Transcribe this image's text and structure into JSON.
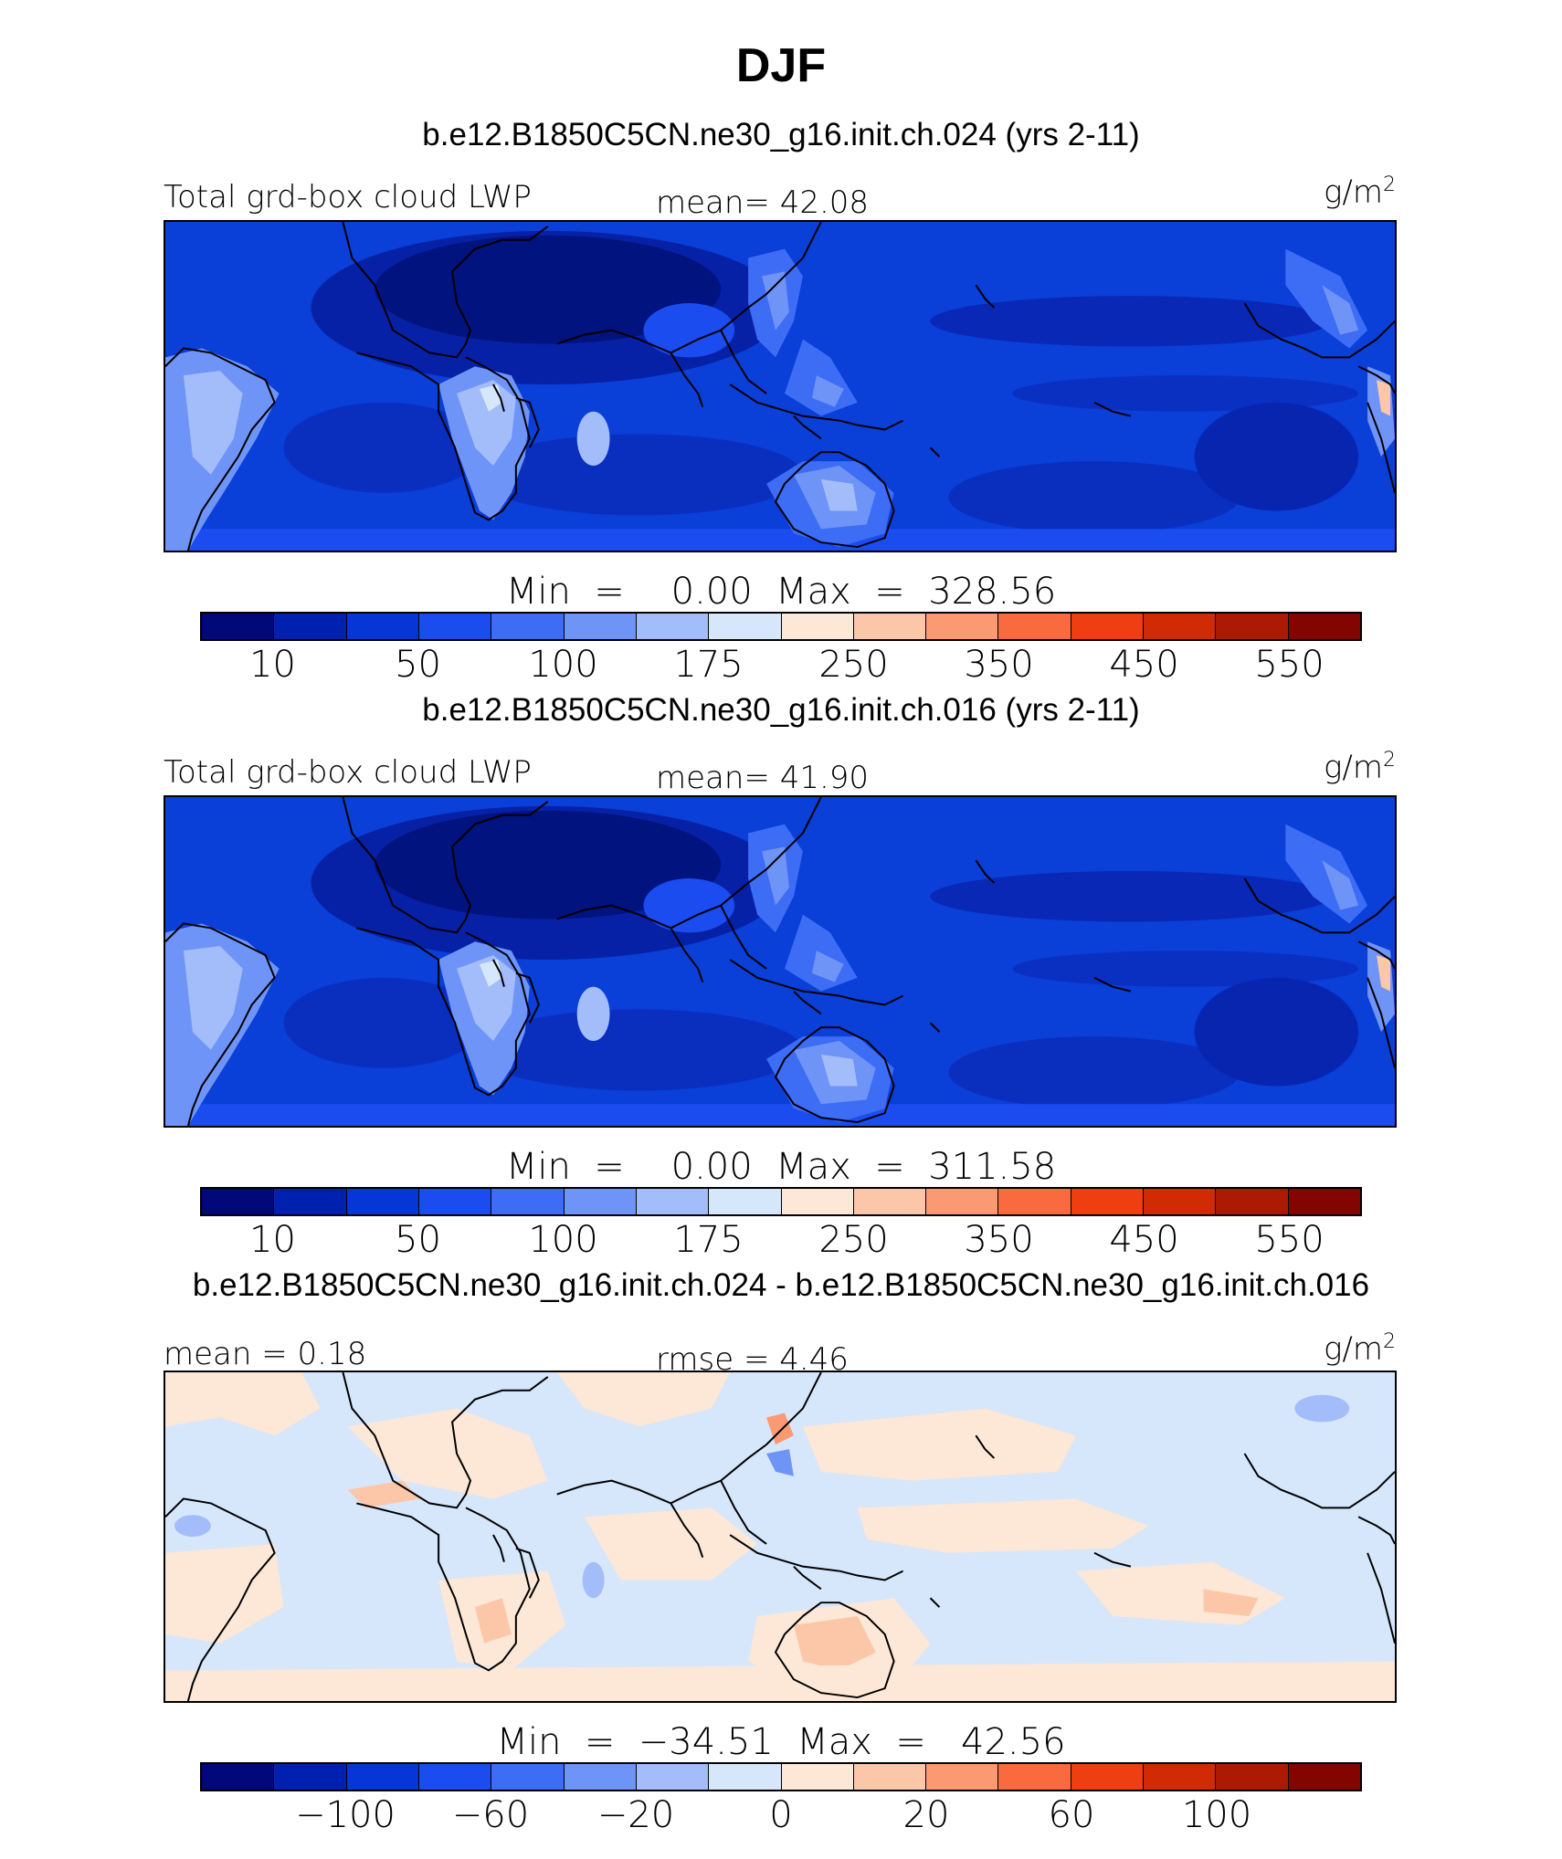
{
  "title": "DJF",
  "panels": [
    {
      "case_title": "b.e12.B1850C5CN.ne30_g16.init.ch.024 (yrs 2-11)",
      "left_label": "Total grd-box cloud LWP",
      "center_label": "mean=   42.08",
      "units": "g/m",
      "units_sup": "2",
      "min_max": "Min  =    0.00  Max  =  328.56",
      "kind": "field"
    },
    {
      "case_title": "b.e12.B1850C5CN.ne30_g16.init.ch.016 (yrs 2-11)",
      "left_label": "Total grd-box cloud LWP",
      "center_label": "mean=   41.90",
      "units": "g/m",
      "units_sup": "2",
      "min_max": "Min  =    0.00  Max  =  311.58",
      "kind": "field"
    },
    {
      "case_title": "b.e12.B1850C5CN.ne30_g16.init.ch.024 - b.e12.B1850C5CN.ne30_g16.init.ch.016",
      "left_label": "mean  =    0.18",
      "center_label": "rmse  =    4.46",
      "units": "g/m",
      "units_sup": "2",
      "min_max": "Min  =  −34.51  Max  =   42.56",
      "kind": "diff"
    }
  ],
  "colorbar": {
    "colors": [
      "#00087a",
      "#0021b0",
      "#0636d6",
      "#1a4cf0",
      "#3d6cf5",
      "#6f94f7",
      "#a3bdfa",
      "#d6e6fb",
      "#fde7d6",
      "#fcc7a8",
      "#fb9a72",
      "#f96a3e",
      "#ef3e12",
      "#d12b06",
      "#ad1a04",
      "#820500"
    ],
    "field_ticks": [
      "10",
      "50",
      "100",
      "175",
      "250",
      "350",
      "450",
      "550"
    ],
    "diff_ticks": [
      "−100",
      "−60",
      "−20",
      "0",
      "20",
      "60",
      "100"
    ]
  }
}
